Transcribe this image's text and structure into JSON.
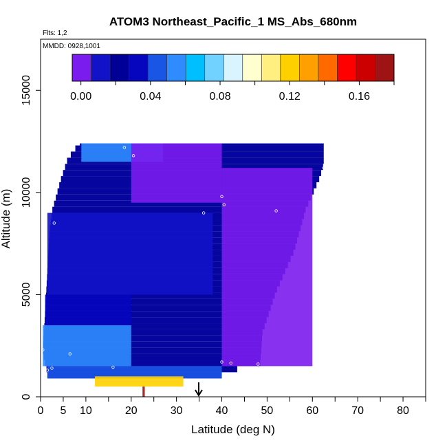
{
  "chart_data": {
    "type": "heatmap",
    "title": "ATOM3 Northeast_Pacific_1 MS_Abs_680nm",
    "flights_note": "Flts: 1,2",
    "dates_note": "MMDD: 0928,1001",
    "xlabel": "Latitude (deg N)",
    "ylabel": "Altitude (m)",
    "xlim": [
      0,
      85
    ],
    "ylim": [
      0,
      17500
    ],
    "xticks_major": [
      0,
      10,
      20,
      30,
      40,
      50,
      60,
      70,
      80
    ],
    "xtick_labels": [
      "0",
      "5",
      "10",
      "20",
      "30",
      "40",
      "50",
      "60",
      "70",
      "80"
    ],
    "xtick_label_values": [
      0,
      5,
      10,
      20,
      30,
      40,
      50,
      60,
      70,
      80
    ],
    "xticks_minor": [
      5,
      15,
      25,
      35,
      45,
      55,
      65,
      75,
      85
    ],
    "yticks": [
      0,
      5000,
      10000,
      15000
    ],
    "ytick_labels": [
      "0",
      "5000",
      "10000",
      "15000"
    ],
    "colorbar": {
      "colors": [
        "#7b1cee",
        "#1212c8",
        "#000096",
        "#0606bf",
        "#1a56e6",
        "#2f8cff",
        "#00bfff",
        "#71d2ff",
        "#d9f4ff",
        "#ffffd0",
        "#ffef80",
        "#ffd000",
        "#ffa000",
        "#ff6a00",
        "#ff0000",
        "#cc0000",
        "#9e1414"
      ],
      "min": -0.005,
      "max": 0.18,
      "tick_values": [
        0.0,
        0.04,
        0.08,
        0.12,
        0.16
      ],
      "tick_labels": [
        "0.00",
        "0.04",
        "0.08",
        "0.12",
        "0.16"
      ]
    },
    "curtain": {
      "lat_left_edge": [
        [
          1000,
          1.5
        ],
        [
          2000,
          0.5
        ],
        [
          4000,
          1.0
        ],
        [
          6000,
          1.5
        ],
        [
          8000,
          2.0
        ],
        [
          9000,
          2.6
        ],
        [
          10500,
          4.5
        ],
        [
          11500,
          6.0
        ],
        [
          12400,
          9.0
        ]
      ],
      "lat_right_edge": [
        [
          1000,
          40.0
        ],
        [
          1500,
          48.5
        ],
        [
          3000,
          49.0
        ],
        [
          5000,
          52.0
        ],
        [
          7000,
          56.0
        ],
        [
          9000,
          58.5
        ],
        [
          10500,
          61.5
        ],
        [
          11200,
          62.5
        ]
      ],
      "top_alt_m": 12400,
      "bottom_alt_m": 900
    },
    "regions": [
      {
        "lat": [
          1.5,
          40
        ],
        "alt": [
          900,
          1500
        ],
        "value": 0.045
      },
      {
        "lat": [
          12,
          31.5
        ],
        "alt": [
          500,
          1000
        ],
        "value": 0.125
      },
      {
        "lat": [
          22.5,
          23
        ],
        "alt": [
          0,
          500
        ],
        "value": 0.175
      },
      {
        "lat": [
          0.5,
          20
        ],
        "alt": [
          1500,
          3500
        ],
        "value": 0.055
      },
      {
        "lat": [
          1.0,
          20
        ],
        "alt": [
          3500,
          5000
        ],
        "value": 0.035
      },
      {
        "lat": [
          1.5,
          38
        ],
        "alt": [
          5000,
          9000
        ],
        "value": 0.01
      },
      {
        "lat": [
          9,
          27
        ],
        "alt": [
          11500,
          12400
        ],
        "value": 0.05
      },
      {
        "lat": [
          20,
          40
        ],
        "alt": [
          9500,
          12400
        ],
        "value": -0.002
      },
      {
        "lat": [
          40,
          60
        ],
        "alt": [
          1500,
          11200
        ],
        "value": 0.002
      }
    ],
    "flight_points": [
      [
        0.5,
        2300
      ],
      [
        1.5,
        1300
      ],
      [
        6.5,
        2100
      ],
      [
        16,
        1450
      ],
      [
        18.5,
        12200
      ],
      [
        20.5,
        11800
      ],
      [
        27,
        12700
      ],
      [
        28.5,
        12500
      ],
      [
        36,
        9000
      ],
      [
        40,
        9800
      ],
      [
        40.5,
        9400
      ],
      [
        52,
        9100
      ],
      [
        62.5,
        11200
      ],
      [
        40,
        1700
      ],
      [
        42,
        1650
      ],
      [
        48,
        1600
      ],
      [
        3,
        8500
      ],
      [
        2.5,
        1400
      ]
    ],
    "arrow_lat": 34.9
  }
}
